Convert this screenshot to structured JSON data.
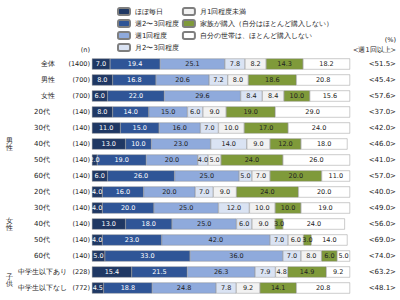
{
  "chart_data": {
    "type": "bar",
    "orientation": "horizontal",
    "stacked": true,
    "data_labels": true,
    "tick_labels": false,
    "legend": "top",
    "xlim": [
      0,
      100
    ],
    "annotations": {
      "n_header": "(n)",
      "unit": "(%)"
    },
    "categories": [
      "全体",
      "男性",
      "女性",
      "20代",
      "30代",
      "40代",
      "50代",
      "60代",
      "20代",
      "30代",
      "40代",
      "50代",
      "60代",
      "中学生以下あり",
      "中学生以下なし"
    ],
    "groups": [
      null,
      null,
      null,
      "男性",
      "男性",
      "男性",
      "男性",
      "男性",
      "女性",
      "女性",
      "女性",
      "女性",
      "女性",
      "子供",
      "子供"
    ],
    "n_labels": [
      "(1400)",
      "(700)",
      "(700)",
      "(140)",
      "(140)",
      "(140)",
      "(140)",
      "(140)",
      "(140)",
      "(140)",
      "(140)",
      "(140)",
      "(140)",
      "(228)",
      "(772)"
    ],
    "weekly_or_more": {
      "label": "<週1回以上>",
      "values": [
        51.5,
        45.4,
        57.6,
        37.0,
        42.0,
        46.0,
        41.0,
        57.0,
        40.0,
        49.0,
        56.0,
        69.0,
        74.0,
        63.2,
        48.1
      ],
      "value_labels": [
        "<51.5>",
        "<45.4>",
        "<57.6>",
        "<37.0>",
        "<42.0>",
        "<46.0>",
        "<41.0>",
        "<57.0>",
        "<40.0>",
        "<49.0>",
        "<56.0>",
        "<69.0>",
        "<74.0>",
        "<63.2>",
        "<48.1>"
      ]
    },
    "series": [
      {
        "name": "ほぼ毎日",
        "color": "#1f3864",
        "values": [
          7.0,
          8.0,
          6.0,
          8,
          11,
          13,
          2,
          6,
          4,
          4,
          13,
          4,
          5,
          15.4,
          4.5
        ],
        "value_labels": [
          "7.0",
          "8.0",
          "6.0",
          "8.0",
          "11.0",
          "13.0",
          "2.0",
          "6.0",
          "4.0",
          "4.0",
          "13.0",
          "4.0",
          "5.0",
          "15.4",
          "4.5"
        ]
      },
      {
        "name": "週2〜3回程度",
        "color": "#2f5597",
        "values": [
          19.4,
          16.8,
          22.0,
          14,
          15,
          10,
          19,
          26,
          16,
          20,
          18,
          23,
          33,
          21.5,
          18.8
        ],
        "value_labels": [
          "19.4",
          "16.8",
          "22.0",
          "14.0",
          "15.0",
          "10.0",
          "19.0",
          "26.0",
          "16.0",
          "20.0",
          "18.0",
          "23.0",
          "33.0",
          "21.5",
          "18.8"
        ]
      },
      {
        "name": "週1回程度",
        "color": "#8faadc",
        "values": [
          25.1,
          20.6,
          29.6,
          15,
          16,
          23,
          20,
          25,
          20,
          25,
          25,
          42,
          36,
          26.3,
          24.8
        ],
        "value_labels": [
          "25.1",
          "20.6",
          "29.6",
          "15.0",
          "16.0",
          "23.0",
          "20.0",
          "25.0",
          "20.0",
          "25.0",
          "25.0",
          "42.0",
          "36.0",
          "26.3",
          "24.8"
        ]
      },
      {
        "name": "月2〜3回程度",
        "color": "#dae3f3",
        "values": [
          7.8,
          7.2,
          8.4,
          6,
          7,
          14,
          4,
          5,
          7,
          12,
          6,
          7,
          7,
          7.9,
          7.8
        ],
        "value_labels": [
          "7.8",
          "7.2",
          "8.4",
          "6.0",
          "7.0",
          "14.0",
          "4.0",
          "5.0",
          "7.0",
          "12.0",
          "6.0",
          "7.0",
          "7.0",
          "7.9",
          "7.8"
        ]
      },
      {
        "name": "月1回程度未満",
        "color": "#f2f2f2",
        "values": [
          8.2,
          8.0,
          8.4,
          9,
          10,
          9,
          5,
          7,
          9,
          10,
          9,
          6,
          8,
          4.8,
          9.2
        ],
        "value_labels": [
          "8.2",
          "8.0",
          "8.4",
          "9.0",
          "10.0",
          "9.0",
          "5.0",
          "7.0",
          "9.0",
          "10.0",
          "9.0",
          "6.0",
          "8.0",
          "4.8",
          "9.2"
        ]
      },
      {
        "name": "家族が購入（自分はほとんど購入しない）",
        "color": "#7f9a3a",
        "values": [
          14.3,
          18.6,
          10.0,
          19,
          17,
          12,
          24,
          20,
          24,
          10,
          3,
          3,
          6,
          14.9,
          14.1
        ],
        "value_labels": [
          "14.3",
          "18.6",
          "10.0",
          "19.0",
          "17.0",
          "12.0",
          "24.0",
          "20.0",
          "24.0",
          "10.0",
          "3.0",
          "3.0",
          "6.0",
          "14.9",
          "14.1"
        ]
      },
      {
        "name": "自分の世帯は、ほとんど購入しない",
        "color": "#ffffff",
        "values": [
          18.2,
          20.8,
          15.6,
          29,
          24,
          18,
          26,
          11,
          20,
          19,
          24,
          14,
          5,
          9.2,
          20.8
        ],
        "value_labels": [
          "18.2",
          "20.8",
          "15.6",
          "29.0",
          "24.0",
          "18.0",
          "26.0",
          "11.0",
          "20.0",
          "19.0",
          "24.0",
          "14.0",
          "5.0",
          "9.2",
          "20.8"
        ]
      }
    ]
  }
}
